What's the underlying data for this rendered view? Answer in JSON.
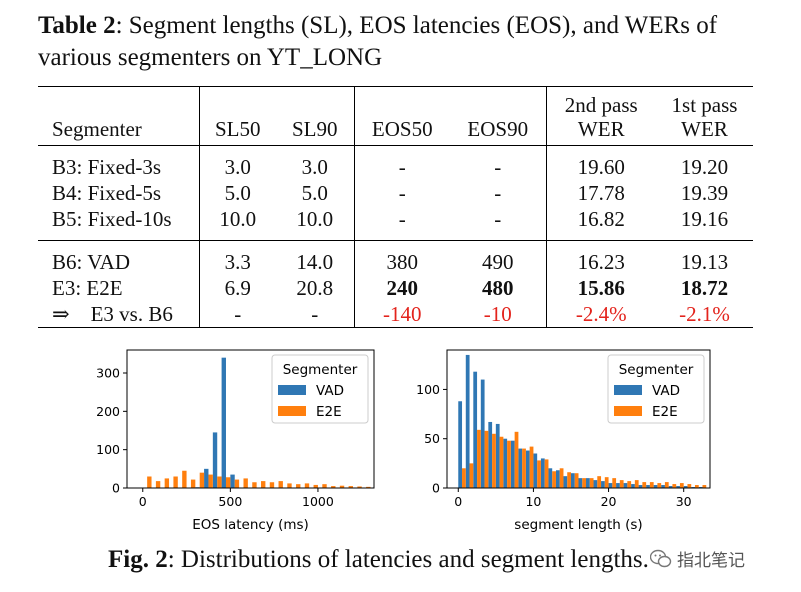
{
  "table": {
    "caption_label": "Table 2",
    "caption_text": ": Segment lengths (SL), EOS latencies (EOS), and WERs of various segmenters on YT_LONG",
    "headers": {
      "segmenter": "Segmenter",
      "sl50": "SL50",
      "sl90": "SL90",
      "eos50": "EOS50",
      "eos90": "EOS90",
      "wer2_line1": "2nd pass",
      "wer2_line2": "WER",
      "wer1_line1": "1st pass",
      "wer1_line2": "WER"
    },
    "group1": [
      {
        "name": "B3: Fixed-3s",
        "sl50": "3.0",
        "sl90": "3.0",
        "eos50": "-",
        "eos90": "-",
        "wer2": "19.60",
        "wer1": "19.20"
      },
      {
        "name": "B4: Fixed-5s",
        "sl50": "5.0",
        "sl90": "5.0",
        "eos50": "-",
        "eos90": "-",
        "wer2": "17.78",
        "wer1": "19.39"
      },
      {
        "name": "B5: Fixed-10s",
        "sl50": "10.0",
        "sl90": "10.0",
        "eos50": "-",
        "eos90": "-",
        "wer2": "16.82",
        "wer1": "19.16"
      }
    ],
    "group2": [
      {
        "name": "B6: VAD",
        "sl50": "3.3",
        "sl90": "14.0",
        "eos50": "380",
        "eos90": "490",
        "wer2": "16.23",
        "wer1": "19.13"
      },
      {
        "name": "E3: E2E",
        "sl50": "6.9",
        "sl90": "20.8",
        "eos50": "240",
        "eos90": "480",
        "wer2": "15.86",
        "wer1": "18.72"
      },
      {
        "name": "⇒    E3 vs. B6",
        "sl50": "-",
        "sl90": "-",
        "eos50": "-140",
        "eos90": "-10",
        "wer2": "-2.4%",
        "wer1": "-2.1%"
      }
    ]
  },
  "colors": {
    "vad": "#2f77b4",
    "e2e": "#ff7f0e",
    "delta": "#e3231c"
  },
  "chart_data": [
    {
      "type": "bar",
      "xlabel": "EOS latency (ms)",
      "ylabel": "",
      "xlim": [
        -90,
        1320
      ],
      "ylim": [
        0,
        360
      ],
      "xticks": [
        0,
        500,
        1000
      ],
      "yticks": [
        0,
        100,
        200,
        300
      ],
      "bin_width": 50,
      "legend": {
        "title": "Segmenter",
        "position": "top-right"
      },
      "series": [
        {
          "name": "VAD",
          "x": [
            300,
            350,
            400,
            450,
            500
          ],
          "values": [
            2,
            50,
            145,
            340,
            35
          ]
        },
        {
          "name": "E2E",
          "x": [
            0,
            50,
            100,
            150,
            200,
            250,
            300,
            350,
            400,
            450,
            500,
            550,
            600,
            650,
            700,
            750,
            800,
            850,
            900,
            950,
            1000,
            1050,
            1100,
            1150,
            1200,
            1250
          ],
          "values": [
            30,
            18,
            25,
            30,
            45,
            22,
            40,
            35,
            30,
            28,
            22,
            25,
            15,
            18,
            15,
            18,
            12,
            10,
            12,
            8,
            10,
            5,
            6,
            5,
            4,
            3
          ]
        }
      ]
    },
    {
      "type": "bar",
      "xlabel": "segment length (s)",
      "ylabel": "",
      "xlim": [
        -1.5,
        33.5
      ],
      "ylim": [
        0,
        140
      ],
      "xticks": [
        0,
        10,
        20,
        30
      ],
      "yticks": [
        0,
        50,
        100
      ],
      "bin_width": 1,
      "legend": {
        "title": "Segmenter",
        "position": "top-right"
      },
      "series": [
        {
          "name": "VAD",
          "x": [
            0,
            1,
            2,
            3,
            4,
            5,
            6,
            7,
            8,
            9,
            10,
            11,
            12,
            13,
            14,
            15,
            16,
            17,
            18,
            19,
            20,
            21,
            22,
            23,
            24,
            25,
            26,
            27,
            28,
            29,
            30,
            31,
            32
          ],
          "values": [
            88,
            135,
            118,
            110,
            67,
            65,
            50,
            48,
            40,
            38,
            35,
            30,
            20,
            18,
            12,
            15,
            10,
            10,
            8,
            7,
            5,
            5,
            5,
            4,
            3,
            3,
            3,
            3,
            2,
            2,
            2,
            1,
            1
          ]
        },
        {
          "name": "E2E",
          "x": [
            0,
            1,
            2,
            3,
            4,
            5,
            6,
            7,
            8,
            9,
            10,
            11,
            12,
            13,
            14,
            15,
            16,
            17,
            18,
            19,
            20,
            21,
            22,
            23,
            24,
            25,
            26,
            27,
            28,
            29,
            30,
            31,
            32
          ],
          "values": [
            20,
            25,
            59,
            58,
            55,
            52,
            48,
            57,
            40,
            42,
            28,
            29,
            17,
            20,
            16,
            15,
            10,
            10,
            12,
            11,
            10,
            8,
            7,
            8,
            6,
            6,
            5,
            6,
            4,
            5,
            4,
            3,
            3
          ]
        }
      ]
    }
  ],
  "figure": {
    "caption_label": "Fig. 2",
    "caption_text": ": Distributions of latencies and segment lengths."
  },
  "watermark": {
    "text": "指北笔记"
  }
}
